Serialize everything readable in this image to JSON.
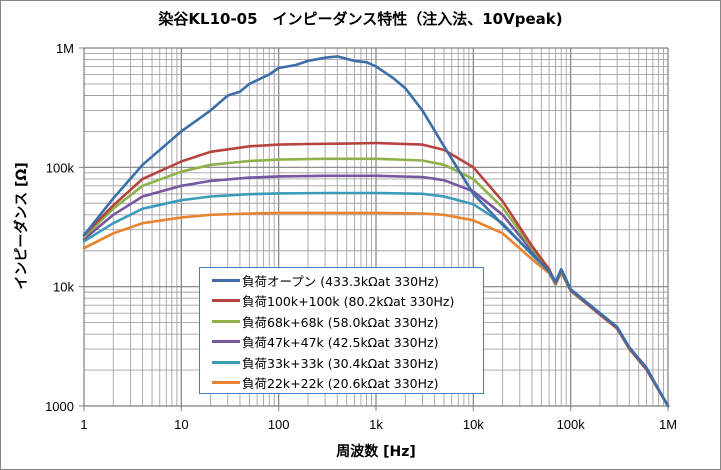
{
  "chart_data": {
    "type": "line",
    "title": "染谷KL10-05　インピーダンス特性（注入法、10Vpeak)",
    "xlabel": "周波数 [Hz]",
    "ylabel": "インピーダンス [Ω]",
    "xscale": "log",
    "yscale": "log",
    "xlim": [
      1,
      1000000
    ],
    "ylim": [
      1000,
      1000000
    ],
    "x_ticks": [
      {
        "v": 1,
        "label": "1"
      },
      {
        "v": 10,
        "label": "10"
      },
      {
        "v": 100,
        "label": "100"
      },
      {
        "v": 1000,
        "label": "1k"
      },
      {
        "v": 10000,
        "label": "10k"
      },
      {
        "v": 100000,
        "label": "100k"
      },
      {
        "v": 1000000,
        "label": "1M"
      }
    ],
    "y_ticks": [
      {
        "v": 1000,
        "label": "1000"
      },
      {
        "v": 10000,
        "label": "10k"
      },
      {
        "v": 100000,
        "label": "100k"
      },
      {
        "v": 1000000,
        "label": "1M"
      }
    ],
    "grid": true,
    "legend_position": "bottom-center",
    "series": [
      {
        "name": "負荷オープン (433.3kΩat 330Hz)",
        "color": "#3c6ea8",
        "points": [
          [
            1,
            27000
          ],
          [
            2,
            55000
          ],
          [
            4,
            105000
          ],
          [
            10,
            200000
          ],
          [
            20,
            300000
          ],
          [
            30,
            400000
          ],
          [
            40,
            430000
          ],
          [
            50,
            500000
          ],
          [
            80,
            600000
          ],
          [
            100,
            680000
          ],
          [
            150,
            720000
          ],
          [
            200,
            780000
          ],
          [
            300,
            830000
          ],
          [
            400,
            850000
          ],
          [
            600,
            780000
          ],
          [
            800,
            760000
          ],
          [
            1000,
            700000
          ],
          [
            1500,
            560000
          ],
          [
            2000,
            460000
          ],
          [
            3000,
            300000
          ],
          [
            5000,
            150000
          ],
          [
            10000,
            60000
          ],
          [
            20000,
            33000
          ],
          [
            40000,
            19000
          ],
          [
            60000,
            13500
          ],
          [
            70000,
            11000
          ],
          [
            80000,
            14000
          ],
          [
            90000,
            11500
          ],
          [
            100000,
            9500
          ],
          [
            200000,
            6000
          ],
          [
            300000,
            4600
          ],
          [
            400000,
            3100
          ],
          [
            600000,
            2100
          ],
          [
            1000000,
            1000
          ]
        ]
      },
      {
        "name": "負荷100k+100k (80.2kΩat 330Hz)",
        "color": "#b5443f",
        "points": [
          [
            1,
            27000
          ],
          [
            2,
            48000
          ],
          [
            4,
            80000
          ],
          [
            10,
            112000
          ],
          [
            20,
            135000
          ],
          [
            50,
            150000
          ],
          [
            100,
            155000
          ],
          [
            200,
            157000
          ],
          [
            500,
            158000
          ],
          [
            1000,
            160000
          ],
          [
            3000,
            155000
          ],
          [
            5000,
            140000
          ],
          [
            10000,
            100000
          ],
          [
            20000,
            52000
          ],
          [
            40000,
            22000
          ],
          [
            60000,
            14000
          ],
          [
            70000,
            10800
          ],
          [
            80000,
            13800
          ],
          [
            90000,
            11300
          ],
          [
            100000,
            9400
          ],
          [
            200000,
            5900
          ],
          [
            300000,
            4500
          ],
          [
            400000,
            3050
          ],
          [
            600000,
            2050
          ],
          [
            1000000,
            1000
          ]
        ]
      },
      {
        "name": "負荷68k+68k (58.0kΩat 330Hz)",
        "color": "#8fb04a",
        "points": [
          [
            1,
            26000
          ],
          [
            2,
            45000
          ],
          [
            4,
            70000
          ],
          [
            10,
            92000
          ],
          [
            20,
            105000
          ],
          [
            50,
            113000
          ],
          [
            100,
            116000
          ],
          [
            300,
            118000
          ],
          [
            1000,
            118000
          ],
          [
            3000,
            114000
          ],
          [
            5000,
            105000
          ],
          [
            10000,
            80000
          ],
          [
            20000,
            46000
          ],
          [
            40000,
            21000
          ],
          [
            60000,
            13800
          ],
          [
            70000,
            10700
          ],
          [
            80000,
            13600
          ],
          [
            90000,
            11200
          ],
          [
            100000,
            9350
          ],
          [
            200000,
            5900
          ],
          [
            300000,
            4500
          ],
          [
            400000,
            3050
          ],
          [
            600000,
            2050
          ],
          [
            1000000,
            1000
          ]
        ]
      },
      {
        "name": "負荷47k+47k (42.5kΩat 330Hz)",
        "color": "#7657a0",
        "points": [
          [
            1,
            25000
          ],
          [
            2,
            40000
          ],
          [
            4,
            57000
          ],
          [
            10,
            70000
          ],
          [
            20,
            77000
          ],
          [
            50,
            82000
          ],
          [
            100,
            84000
          ],
          [
            300,
            85000
          ],
          [
            1000,
            85000
          ],
          [
            3000,
            83000
          ],
          [
            5000,
            78000
          ],
          [
            10000,
            63000
          ],
          [
            20000,
            40000
          ],
          [
            40000,
            20000
          ],
          [
            60000,
            13600
          ],
          [
            70000,
            10600
          ],
          [
            80000,
            13500
          ],
          [
            90000,
            11100
          ],
          [
            100000,
            9300
          ],
          [
            200000,
            5850
          ],
          [
            300000,
            4480
          ],
          [
            400000,
            3030
          ],
          [
            600000,
            2040
          ],
          [
            1000000,
            1000
          ]
        ]
      },
      {
        "name": "負荷33k+33k (30.4kΩat 330Hz)",
        "color": "#3a9cb8",
        "points": [
          [
            1,
            24000
          ],
          [
            2,
            34000
          ],
          [
            4,
            45000
          ],
          [
            10,
            53000
          ],
          [
            20,
            57000
          ],
          [
            50,
            59500
          ],
          [
            100,
            60500
          ],
          [
            300,
            61000
          ],
          [
            1000,
            61000
          ],
          [
            3000,
            60000
          ],
          [
            5000,
            57000
          ],
          [
            10000,
            49000
          ],
          [
            20000,
            34000
          ],
          [
            40000,
            18500
          ],
          [
            60000,
            13400
          ],
          [
            70000,
            10500
          ],
          [
            80000,
            13400
          ],
          [
            90000,
            11000
          ],
          [
            100000,
            9250
          ],
          [
            200000,
            5850
          ],
          [
            300000,
            4470
          ],
          [
            400000,
            3020
          ],
          [
            600000,
            2030
          ],
          [
            1000000,
            1000
          ]
        ]
      },
      {
        "name": "負荷22k+22k (20.6kΩat 330Hz)",
        "color": "#e8832f",
        "points": [
          [
            1,
            21000
          ],
          [
            2,
            28000
          ],
          [
            4,
            34000
          ],
          [
            10,
            38000
          ],
          [
            20,
            40000
          ],
          [
            50,
            41000
          ],
          [
            100,
            41500
          ],
          [
            300,
            41500
          ],
          [
            1000,
            41500
          ],
          [
            3000,
            41000
          ],
          [
            5000,
            40000
          ],
          [
            10000,
            36000
          ],
          [
            20000,
            28000
          ],
          [
            40000,
            17000
          ],
          [
            60000,
            13000
          ],
          [
            70000,
            10400
          ],
          [
            80000,
            13200
          ],
          [
            90000,
            10900
          ],
          [
            100000,
            9200
          ],
          [
            200000,
            5800
          ],
          [
            300000,
            4450
          ],
          [
            400000,
            3000
          ],
          [
            600000,
            2020
          ],
          [
            1000000,
            1000
          ]
        ]
      }
    ]
  }
}
